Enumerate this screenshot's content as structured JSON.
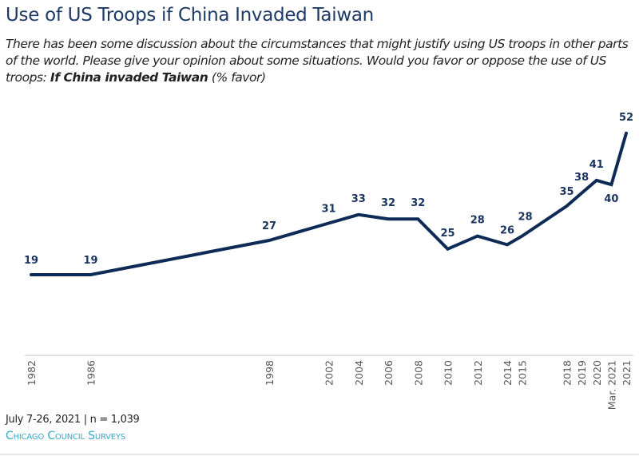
{
  "header": {
    "title": "Use of US Troops if China Invaded Taiwan",
    "question_text": "There has been some discussion about the circumstances that might justify using US troops in other parts of the world. Please give your opinion about some situations. Would you favor or oppose the use of US troops: ",
    "question_bold": "If China invaded Taiwan",
    "question_suffix": " (% favor)"
  },
  "footer": {
    "fieldwork": "July 7-26, 2021 | n = 1,039",
    "source": "Chicago Council Surveys"
  },
  "colors": {
    "line": "#0d2b56",
    "label": "#1b3560",
    "axis": "#d9d9d9",
    "tick_text": "#595959",
    "brand": "#3aa7c7"
  },
  "chart_data": {
    "type": "line",
    "title": "Use of US Troops if China Invaded Taiwan",
    "xlabel": "",
    "ylabel": "% favor",
    "ylim": [
      0,
      55
    ],
    "grid": false,
    "legend": "none",
    "x_scale": "time (by survey year)",
    "categories": [
      "1982",
      "1986",
      "1998",
      "2002",
      "2004",
      "2006",
      "2008",
      "2010",
      "2012",
      "2014",
      "2015",
      "2018",
      "2019",
      "2020",
      "Mar. 2021",
      "2021"
    ],
    "x_numeric": [
      1982,
      1986,
      1998,
      2002,
      2004,
      2006,
      2008,
      2010,
      2012,
      2014,
      2015,
      2018,
      2019,
      2020,
      2021,
      2022
    ],
    "series": [
      {
        "name": "Favor use of US troops if China invaded Taiwan",
        "values": [
          19,
          19,
          27,
          31,
          33,
          32,
          32,
          25,
          28,
          26,
          28,
          35,
          38,
          41,
          40,
          52
        ]
      }
    ],
    "data_labels": [
      "19",
      "19",
      "27",
      "31",
      "33",
      "32",
      "32",
      "25",
      "28",
      "26",
      "28",
      "35",
      "38",
      "41",
      "40",
      "52"
    ]
  }
}
